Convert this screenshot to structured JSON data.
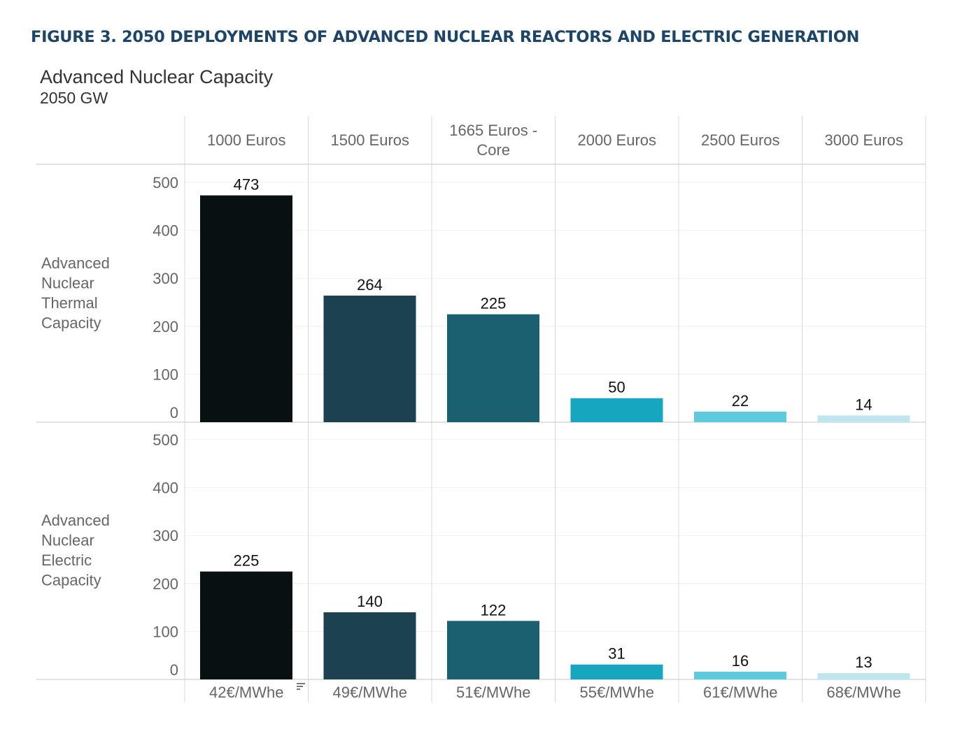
{
  "figure_title": "FIGURE 3. 2050 DEPLOYMENTS OF ADVANCED NUCLEAR REACTORS AND ELECTRIC GENERATION",
  "chart_data": {
    "type": "bar",
    "title": "Advanced Nuclear Capacity",
    "subtitle": "2050 GW",
    "categories": [
      [
        "1000 Euros"
      ],
      [
        "1500 Euros"
      ],
      [
        "1665 Euros -",
        "Core"
      ],
      [
        "2000 Euros"
      ],
      [
        "2500 Euros"
      ],
      [
        "3000 Euros"
      ]
    ],
    "bottom_labels": [
      "42€/MWhe",
      "49€/MWhe",
      "51€/MWhe",
      "55€/MWhe",
      "61€/MWhe",
      "68€/MWhe"
    ],
    "colors": [
      "#081012",
      "#1c4150",
      "#1b6070",
      "#17a6c0",
      "#5ecadd",
      "#bfe6ef"
    ],
    "ylim": [
      0,
      500
    ],
    "yticks": [
      0,
      100,
      200,
      300,
      400,
      500
    ],
    "grid": true,
    "panels": [
      {
        "name": [
          "Advanced",
          "Nuclear",
          "Thermal",
          "Capacity"
        ],
        "values": [
          473,
          264,
          225,
          50,
          22,
          14
        ]
      },
      {
        "name": [
          "Advanced",
          "Nuclear",
          "Electric",
          "Capacity"
        ],
        "values": [
          225,
          140,
          122,
          31,
          16,
          13
        ]
      }
    ],
    "sort_icon": "sort-icon"
  }
}
